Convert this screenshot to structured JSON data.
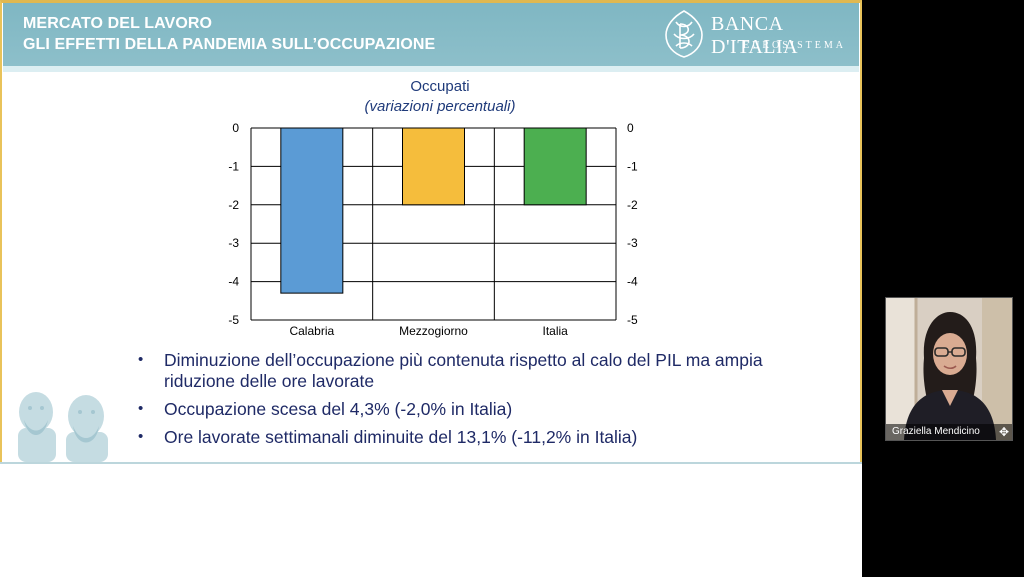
{
  "slide": {
    "title_line1": "MERCATO DEL LAVORO",
    "title_line2": "GLI EFFETTI DELLA PANDEMIA SULL’OCCUPAZIONE",
    "logo_name": "BANCA D'ITALIA",
    "logo_sub": "EUROSISTEMA",
    "bullets": [
      "Diminuzione dell’occupazione più contenuta rispetto al calo del PIL ma ampia riduzione delle ore lavorate",
      "Occupazione scesa del 4,3% (-2,0% in Italia)",
      "Ore lavorate settimanali diminuite del 13,1% (-11,2% in Italia)"
    ]
  },
  "chart_data": {
    "type": "bar",
    "title": "Occupati",
    "subtitle": "(variazioni percentuali)",
    "categories": [
      "Calabria",
      "Mezzogiorno",
      "Italia"
    ],
    "values": [
      -4.3,
      -2.0,
      -2.0
    ],
    "colors": [
      "#5b9bd5",
      "#f5bd3c",
      "#4caf50"
    ],
    "ylim": [
      -5,
      0
    ],
    "yticks": [
      "0",
      "-1",
      "-2",
      "-3",
      "-4",
      "-5"
    ],
    "y_axis_both_sides": true,
    "grid": true
  },
  "webcam": {
    "participant_name": "Graziella Mendicino",
    "icon": "move-icon"
  }
}
